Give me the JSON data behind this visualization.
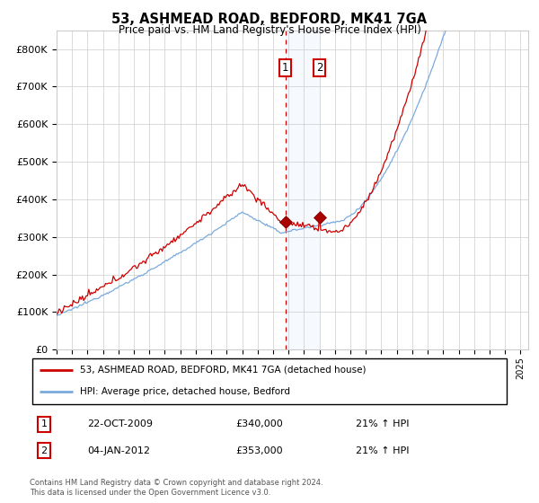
{
  "title": "53, ASHMEAD ROAD, BEDFORD, MK41 7GA",
  "subtitle": "Price paid vs. HM Land Registry's House Price Index (HPI)",
  "legend_line1": "53, ASHMEAD ROAD, BEDFORD, MK41 7GA (detached house)",
  "legend_line2": "HPI: Average price, detached house, Bedford",
  "transaction1_date": "22-OCT-2009",
  "transaction1_price": 340000,
  "transaction1_hpi": "21% ↑ HPI",
  "transaction2_date": "04-JAN-2012",
  "transaction2_price": 353000,
  "transaction2_hpi": "21% ↑ HPI",
  "footer": "Contains HM Land Registry data © Crown copyright and database right 2024.\nThis data is licensed under the Open Government Licence v3.0.",
  "red_color": "#cc0000",
  "blue_color": "#7aaadd",
  "bg_color": "#ffffff",
  "grid_color": "#cccccc",
  "shade_color": "#ddeeff",
  "vline_color": "#cc0000",
  "ylim": [
    0,
    850000
  ],
  "year_start": 1995,
  "year_end": 2025
}
